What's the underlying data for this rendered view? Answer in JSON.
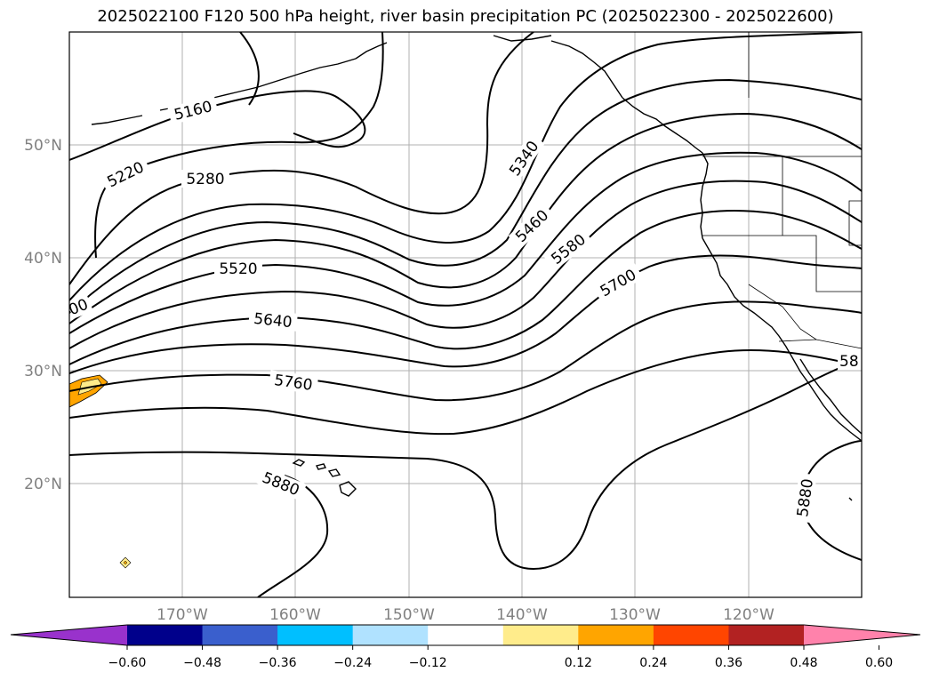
{
  "title": "2025022100 F120 500 hPa height, river basin precipitation PC (2025022300 - 2025022600)",
  "map": {
    "lat_labels": [
      "50°N",
      "40°N",
      "30°N",
      "20°N"
    ],
    "lon_labels": [
      "170°W",
      "160°W",
      "150°W",
      "140°W",
      "130°W",
      "120°W"
    ],
    "contour_labels": [
      "5160",
      "5220",
      "5280",
      "5340",
      "5460",
      "5520",
      "5580",
      "5640",
      "5700",
      "5760",
      "5880",
      "5880",
      "00",
      "58"
    ],
    "contour_color": "#000000",
    "grid_color": "#b0b0b0",
    "land_outline_color": "#000000",
    "precip_anomaly_color": "#ffa500"
  },
  "colorbar": {
    "colors": [
      "#9932cc",
      "#00008b",
      "#3a5fcd",
      "#00bfff",
      "#b0e2ff",
      "#ffffff",
      "#ffec8b",
      "#ffa500",
      "#ff4500",
      "#b22222",
      "#ff82ab"
    ],
    "tick_labels": [
      "−0.60",
      "−0.48",
      "−0.36",
      "−0.24",
      "−0.12",
      "0.12",
      "0.24",
      "0.36",
      "0.48",
      "0.60"
    ]
  }
}
